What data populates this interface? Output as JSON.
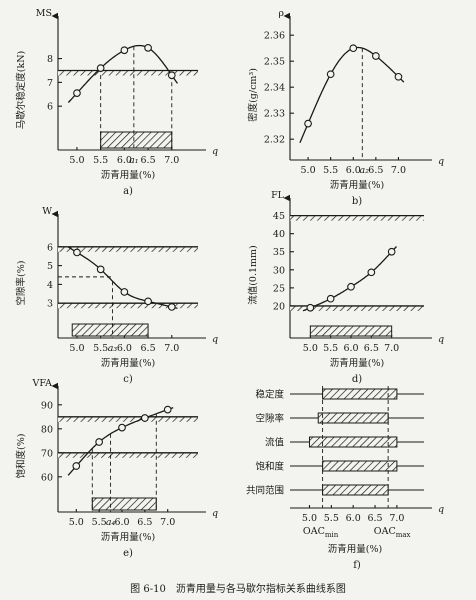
{
  "caption": "图 6-10　沥青用量与各马歇尔指标关系曲线系图",
  "xlabel": "沥青用量(%)",
  "q_label": "q",
  "chart_data": [
    {
      "id": "a",
      "type": "line",
      "caption": "a)",
      "axis_symbol": "MS",
      "ylabel": "马歇尔稳定度(kN)",
      "xlim": [
        4.6,
        7.3
      ],
      "ylim": [
        5.0,
        9.2
      ],
      "xticks": [
        "5.0",
        "5.5",
        "6.0",
        "6.5",
        "7.0"
      ],
      "xtick_values": [
        5.0,
        5.5,
        6.0,
        6.5,
        7.0
      ],
      "yticks": [
        "6",
        "7",
        "8"
      ],
      "ytick_values": [
        6,
        7,
        8
      ],
      "points": [
        [
          5.0,
          6.55
        ],
        [
          5.5,
          7.6
        ],
        [
          6.0,
          8.35
        ],
        [
          6.5,
          8.45
        ],
        [
          7.0,
          7.3
        ]
      ],
      "bound_lines": [
        7.5
      ],
      "bound_hatch_side": "below",
      "range_bar": [
        5.5,
        7.0
      ],
      "markers": [
        {
          "x": 5.5,
          "label": ""
        },
        {
          "x": 6.2,
          "label": "a₁"
        },
        {
          "x": 7.0,
          "label": ""
        }
      ]
    },
    {
      "id": "b",
      "type": "line",
      "caption": "b)",
      "axis_symbol": "ρ",
      "ylabel": "密度(g/cm³)",
      "xlim": [
        4.6,
        7.3
      ],
      "ylim": [
        2.312,
        2.362
      ],
      "xticks": [
        "5.0",
        "5.5",
        "6.0",
        "6.5",
        "7.0"
      ],
      "xtick_values": [
        5.0,
        5.5,
        6.0,
        6.5,
        7.0
      ],
      "yticks": [
        "2.32",
        "2.33",
        "2.34",
        "2.35",
        "2.36"
      ],
      "ytick_values": [
        2.32,
        2.33,
        2.34,
        2.35,
        2.36
      ],
      "points": [
        [
          5.0,
          2.326
        ],
        [
          5.5,
          2.345
        ],
        [
          6.0,
          2.355
        ],
        [
          6.5,
          2.352
        ],
        [
          7.0,
          2.344
        ]
      ],
      "bound_lines": [],
      "range_bar": null,
      "markers": [
        {
          "x": 6.2,
          "label": "a₂"
        }
      ]
    },
    {
      "id": "c",
      "type": "line",
      "caption": "c)",
      "axis_symbol": "W",
      "ylabel": "空隙率(%)",
      "xlim": [
        4.6,
        7.3
      ],
      "ylim": [
        2.0,
        7.0
      ],
      "xticks": [
        "5.0",
        "5.5",
        "6.0",
        "6.5",
        "7.0"
      ],
      "xtick_values": [
        5.0,
        5.5,
        6.0,
        6.5,
        7.0
      ],
      "xtick_extra": [
        {
          "x": 5.75,
          "label": "a₃"
        }
      ],
      "yticks": [
        "3",
        "4",
        "5",
        "6"
      ],
      "ytick_values": [
        3,
        4,
        5,
        6
      ],
      "points": [
        [
          5.0,
          5.7
        ],
        [
          5.5,
          4.8
        ],
        [
          6.0,
          3.6
        ],
        [
          6.5,
          3.1
        ],
        [
          7.0,
          2.8
        ]
      ],
      "bound_lines": [
        6.0,
        3.0
      ],
      "range_bar": [
        4.9,
        6.5
      ],
      "markers": [
        {
          "x": 5.75,
          "label": ""
        }
      ],
      "level_guide": {
        "y": 4.4,
        "x": 5.75
      }
    },
    {
      "id": "d",
      "type": "line",
      "caption": "d)",
      "axis_symbol": "FL",
      "ylabel": "流值(0.1mm)",
      "xlim": [
        4.5,
        7.5
      ],
      "ylim": [
        15.0,
        46.0
      ],
      "xticks": [
        "5.0",
        "5.5",
        "6.0",
        "6.5",
        "7.0"
      ],
      "xtick_values": [
        5.0,
        5.5,
        6.0,
        6.5,
        7.0
      ],
      "yticks": [
        "20",
        "25",
        "30",
        "35",
        "40",
        "45"
      ],
      "ytick_values": [
        20,
        25,
        30,
        35,
        40,
        45
      ],
      "points": [
        [
          5.0,
          19.5
        ],
        [
          5.5,
          22.0
        ],
        [
          6.0,
          25.3
        ],
        [
          6.5,
          29.3
        ],
        [
          7.0,
          35.0
        ]
      ],
      "bound_lines": [
        20.0,
        45.0
      ],
      "range_bar": [
        5.0,
        7.0
      ],
      "markers": []
    },
    {
      "id": "e",
      "type": "line",
      "caption": "e)",
      "axis_symbol": "VFA",
      "ylabel": "饱和度(%)",
      "xlim": [
        4.6,
        7.4
      ],
      "ylim": [
        52,
        92
      ],
      "xticks": [
        "5.0",
        "5.5",
        "6.0",
        "6.5",
        "7.0"
      ],
      "xtick_values": [
        5.0,
        5.5,
        6.0,
        6.5,
        7.0
      ],
      "xtick_extra": [
        {
          "x": 5.75,
          "label": "a₄"
        }
      ],
      "yticks": [
        "60",
        "70",
        "80",
        "90"
      ],
      "ytick_values": [
        60,
        70,
        80,
        90
      ],
      "points": [
        [
          5.0,
          64.5
        ],
        [
          5.5,
          74.5
        ],
        [
          6.0,
          80.5
        ],
        [
          6.5,
          84.5
        ],
        [
          7.0,
          88.0
        ]
      ],
      "bound_lines": [
        70.0,
        85.0
      ],
      "range_bar": [
        5.35,
        6.75
      ],
      "markers": [
        {
          "x": 5.35,
          "label": ""
        },
        {
          "x": 5.75,
          "label": ""
        },
        {
          "x": 6.75,
          "label": ""
        }
      ]
    }
  ],
  "summary_chart": {
    "caption": "f)",
    "xlim": [
      4.6,
      7.3
    ],
    "xticks": [
      "5.0",
      "5.5",
      "6.0",
      "6.5",
      "7.0"
    ],
    "xtick_values": [
      5.0,
      5.5,
      6.0,
      6.5,
      7.0
    ],
    "rows": [
      {
        "label": "稳定度",
        "range": [
          5.3,
          7.0
        ]
      },
      {
        "label": "空隙率",
        "range": [
          5.2,
          6.8
        ]
      },
      {
        "label": "流值",
        "range": [
          5.0,
          7.0
        ]
      },
      {
        "label": "饱和度",
        "range": [
          5.3,
          7.0
        ]
      },
      {
        "label": "共同范围",
        "range": [
          5.3,
          6.8
        ]
      }
    ],
    "oac_min": {
      "x": 5.3,
      "label": "OAC",
      "sub": "min"
    },
    "oac_max": {
      "x": 6.8,
      "label": "OAC",
      "sub": "max"
    }
  }
}
